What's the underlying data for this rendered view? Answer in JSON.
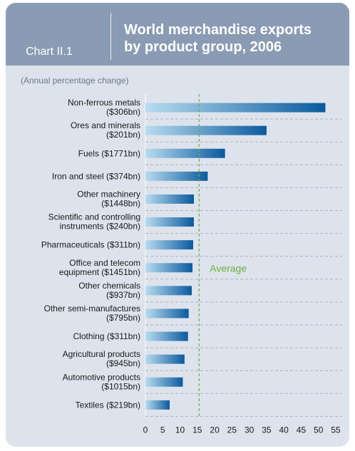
{
  "chart_number": "Chart II.1",
  "title": "World merchandise exports\nby product group, 2006",
  "chart_data": {
    "type": "bar",
    "orientation": "horizontal",
    "subtitle": "(Annual percentage change)",
    "categories": [
      [
        "Non-ferrous metals",
        "($306bn)"
      ],
      [
        "Ores and minerals",
        "($201bn)"
      ],
      [
        "Fuels ($1771bn)"
      ],
      [
        "Iron and steel ($374bn)"
      ],
      [
        "Other machinery",
        "($1448bn)"
      ],
      [
        "Scientific and controlling",
        "instruments ($240bn)"
      ],
      [
        "Pharmaceuticals ($311bn)"
      ],
      [
        "Office and telecom",
        "equipment ($1451bn)"
      ],
      [
        "Other chemicals",
        "($937bn)"
      ],
      [
        "Other semi-manufactures",
        "($795bn)"
      ],
      [
        "Clothing ($311bn)"
      ],
      [
        "Agricultural products",
        "($945bn)"
      ],
      [
        "Automotive products",
        "($1015bn)"
      ],
      [
        "Textiles ($219bn)"
      ]
    ],
    "values": [
      52,
      35,
      23,
      18,
      14,
      14,
      13.8,
      13.6,
      13.4,
      12.5,
      12.3,
      11.3,
      10.8,
      7
    ],
    "xlim": [
      0,
      55
    ],
    "xticks": [
      0,
      5,
      10,
      15,
      20,
      25,
      30,
      35,
      40,
      45,
      50,
      55
    ],
    "average": {
      "label": "Average",
      "value": 15.5
    },
    "grid": "horizontal-dashed",
    "colors": {
      "bar_light": "#b8dcef",
      "bar_dark": "#0a5a9e",
      "average_line": "#6cae3c"
    }
  }
}
